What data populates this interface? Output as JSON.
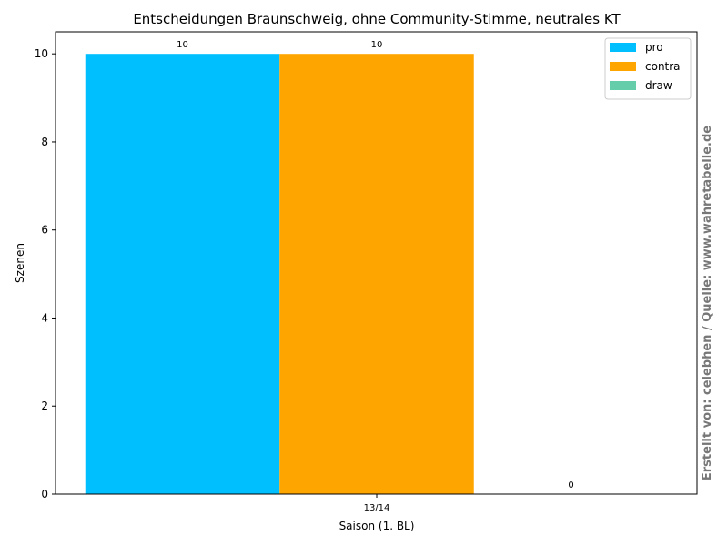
{
  "chart_data": {
    "type": "bar",
    "title": "Entscheidungen Braunschweig, ohne Community-Stimme, neutrales KT",
    "xlabel": "Saison (1. BL)",
    "ylabel": "Szenen",
    "categories": [
      "13/14"
    ],
    "ylim": [
      0,
      10.5
    ],
    "yticks": [
      0,
      2,
      4,
      6,
      8,
      10
    ],
    "grid": false,
    "legend_position": "top-right",
    "series": [
      {
        "name": "pro",
        "values": [
          10
        ],
        "color": "#00bfff"
      },
      {
        "name": "contra",
        "values": [
          10
        ],
        "color": "#ffa500"
      },
      {
        "name": "draw",
        "values": [
          0
        ],
        "color": "#66cdaa"
      }
    ]
  },
  "credit": "Erstellt von: celebhen / Quelle: www.wahretabelle.de"
}
